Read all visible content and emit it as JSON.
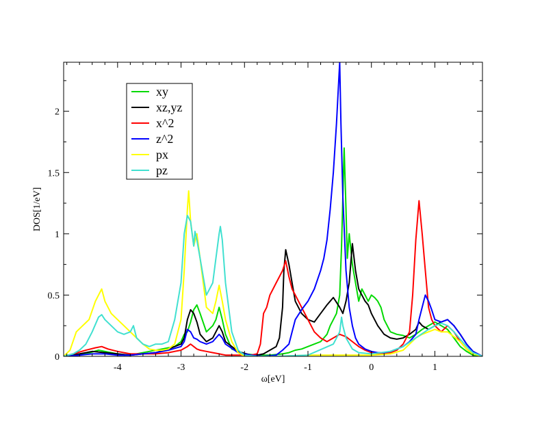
{
  "chart_data": {
    "type": "line",
    "title": "",
    "xlabel": "ω[eV]",
    "ylabel": "DOS[1/eV]",
    "xlim": [
      -4.85,
      1.75
    ],
    "ylim": [
      0,
      2.4
    ],
    "xticks": [
      -4,
      -3,
      -2,
      -1,
      0,
      1
    ],
    "yticks": [
      0,
      0.5,
      1,
      1.5,
      2
    ],
    "xtick_labels": [
      "-4",
      "-3",
      "-2",
      "-1",
      "0",
      "1"
    ],
    "ytick_labels": [
      "0",
      "0.5",
      "1",
      "1.5",
      "2"
    ],
    "grid": false,
    "legend_position": "top-left",
    "series": [
      {
        "name": "xy",
        "color": "#00d900",
        "x": [
          -4.85,
          -4.7,
          -4.5,
          -4.3,
          -4.1,
          -3.9,
          -3.7,
          -3.5,
          -3.3,
          -3.1,
          -3.0,
          -2.95,
          -2.9,
          -2.85,
          -2.8,
          -2.75,
          -2.7,
          -2.6,
          -2.5,
          -2.45,
          -2.4,
          -2.35,
          -2.3,
          -2.2,
          -2.0,
          -1.8,
          -1.6,
          -1.4,
          -1.3,
          -1.2,
          -1.1,
          -1.0,
          -0.9,
          -0.8,
          -0.75,
          -0.7,
          -0.65,
          -0.6,
          -0.55,
          -0.5,
          -0.47,
          -0.45,
          -0.43,
          -0.4,
          -0.38,
          -0.35,
          -0.3,
          -0.25,
          -0.2,
          -0.15,
          -0.1,
          -0.05,
          0.0,
          0.05,
          0.1,
          0.15,
          0.2,
          0.3,
          0.4,
          0.5,
          0.6,
          0.7,
          0.8,
          0.9,
          1.0,
          1.1,
          1.2,
          1.3,
          1.4,
          1.5,
          1.6,
          1.75
        ],
        "y": [
          0,
          0.01,
          0.02,
          0.05,
          0.03,
          0.01,
          0.02,
          0.04,
          0.06,
          0.08,
          0.12,
          0.18,
          0.2,
          0.28,
          0.38,
          0.42,
          0.35,
          0.2,
          0.25,
          0.3,
          0.4,
          0.3,
          0.18,
          0.06,
          0.02,
          0.01,
          0.01,
          0.02,
          0.03,
          0.05,
          0.06,
          0.08,
          0.1,
          0.12,
          0.15,
          0.18,
          0.25,
          0.3,
          0.35,
          0.5,
          0.9,
          1.3,
          1.7,
          1.2,
          0.8,
          1.0,
          0.75,
          0.6,
          0.45,
          0.55,
          0.5,
          0.45,
          0.5,
          0.48,
          0.45,
          0.4,
          0.3,
          0.2,
          0.18,
          0.17,
          0.15,
          0.18,
          0.22,
          0.25,
          0.28,
          0.25,
          0.22,
          0.15,
          0.08,
          0.04,
          0.01,
          0
        ],
        "data_names": []
      },
      {
        "name": "xz,yz",
        "color": "#000000",
        "x": [
          -4.85,
          -4.6,
          -4.4,
          -4.2,
          -4.0,
          -3.8,
          -3.6,
          -3.4,
          -3.2,
          -3.0,
          -2.95,
          -2.9,
          -2.85,
          -2.8,
          -2.75,
          -2.7,
          -2.6,
          -2.5,
          -2.45,
          -2.4,
          -2.35,
          -2.3,
          -2.1,
          -1.9,
          -1.8,
          -1.7,
          -1.6,
          -1.5,
          -1.45,
          -1.4,
          -1.38,
          -1.35,
          -1.3,
          -1.25,
          -1.2,
          -1.1,
          -1.0,
          -0.9,
          -0.8,
          -0.7,
          -0.6,
          -0.5,
          -0.45,
          -0.4,
          -0.35,
          -0.3,
          -0.25,
          -0.2,
          -0.15,
          -0.1,
          -0.05,
          0.0,
          0.1,
          0.2,
          0.3,
          0.4,
          0.5,
          0.6,
          0.7,
          0.75,
          0.8,
          0.9,
          1.0,
          1.1,
          1.2,
          1.3,
          1.4,
          1.5,
          1.6,
          1.75
        ],
        "y": [
          0,
          0.02,
          0.04,
          0.03,
          0.02,
          0.01,
          0.02,
          0.03,
          0.06,
          0.1,
          0.15,
          0.3,
          0.38,
          0.35,
          0.28,
          0.18,
          0.12,
          0.15,
          0.2,
          0.25,
          0.2,
          0.12,
          0.04,
          0.01,
          0.01,
          0.02,
          0.05,
          0.08,
          0.15,
          0.4,
          0.7,
          0.87,
          0.75,
          0.6,
          0.45,
          0.35,
          0.3,
          0.28,
          0.35,
          0.42,
          0.48,
          0.4,
          0.35,
          0.45,
          0.6,
          0.92,
          0.7,
          0.55,
          0.5,
          0.45,
          0.42,
          0.35,
          0.25,
          0.18,
          0.15,
          0.14,
          0.15,
          0.18,
          0.22,
          0.28,
          0.25,
          0.22,
          0.25,
          0.28,
          0.3,
          0.25,
          0.18,
          0.1,
          0.04,
          0
        ],
        "data_names": []
      },
      {
        "name": "x^2",
        "color": "#ff0000",
        "x": [
          -4.85,
          -4.7,
          -4.5,
          -4.35,
          -4.25,
          -4.15,
          -4.0,
          -3.8,
          -3.6,
          -3.4,
          -3.2,
          -3.0,
          -2.9,
          -2.85,
          -2.8,
          -2.75,
          -2.7,
          -2.6,
          -2.5,
          -2.4,
          -2.3,
          -2.1,
          -1.9,
          -1.8,
          -1.75,
          -1.7,
          -1.65,
          -1.6,
          -1.55,
          -1.5,
          -1.45,
          -1.4,
          -1.35,
          -1.3,
          -1.25,
          -1.2,
          -1.1,
          -1.0,
          -0.9,
          -0.8,
          -0.7,
          -0.6,
          -0.5,
          -0.4,
          -0.3,
          -0.2,
          -0.1,
          0.0,
          0.1,
          0.2,
          0.3,
          0.4,
          0.5,
          0.6,
          0.65,
          0.7,
          0.75,
          0.8,
          0.85,
          0.9,
          0.95,
          1.0,
          1.1,
          1.2,
          1.3,
          1.4,
          1.5,
          1.6,
          1.75
        ],
        "y": [
          0,
          0.02,
          0.05,
          0.07,
          0.08,
          0.06,
          0.04,
          0.02,
          0.02,
          0.02,
          0.03,
          0.05,
          0.08,
          0.1,
          0.08,
          0.06,
          0.05,
          0.04,
          0.03,
          0.02,
          0.01,
          0.01,
          0.01,
          0.02,
          0.1,
          0.35,
          0.4,
          0.5,
          0.55,
          0.6,
          0.65,
          0.7,
          0.78,
          0.65,
          0.55,
          0.5,
          0.4,
          0.3,
          0.2,
          0.15,
          0.12,
          0.15,
          0.18,
          0.16,
          0.12,
          0.08,
          0.05,
          0.03,
          0.02,
          0.02,
          0.03,
          0.05,
          0.1,
          0.2,
          0.5,
          0.95,
          1.27,
          1.0,
          0.7,
          0.4,
          0.3,
          0.25,
          0.2,
          0.25,
          0.2,
          0.12,
          0.06,
          0.02,
          0
        ],
        "data_names": []
      },
      {
        "name": "z^2",
        "color": "#0000ff",
        "x": [
          -4.85,
          -4.6,
          -4.4,
          -4.2,
          -4.0,
          -3.8,
          -3.6,
          -3.4,
          -3.2,
          -3.0,
          -2.95,
          -2.9,
          -2.85,
          -2.8,
          -2.75,
          -2.7,
          -2.6,
          -2.5,
          -2.45,
          -2.4,
          -2.35,
          -2.3,
          -2.1,
          -1.9,
          -1.7,
          -1.5,
          -1.4,
          -1.3,
          -1.25,
          -1.2,
          -1.1,
          -1.0,
          -0.9,
          -0.8,
          -0.75,
          -0.7,
          -0.65,
          -0.6,
          -0.55,
          -0.52,
          -0.5,
          -0.48,
          -0.45,
          -0.4,
          -0.35,
          -0.3,
          -0.25,
          -0.2,
          -0.15,
          -0.1,
          0.0,
          0.1,
          0.2,
          0.3,
          0.4,
          0.5,
          0.6,
          0.7,
          0.75,
          0.8,
          0.85,
          0.9,
          0.95,
          1.0,
          1.1,
          1.2,
          1.3,
          1.4,
          1.5,
          1.6,
          1.75
        ],
        "y": [
          0,
          0.01,
          0.02,
          0.02,
          0.01,
          0.01,
          0.02,
          0.03,
          0.05,
          0.08,
          0.12,
          0.22,
          0.2,
          0.15,
          0.14,
          0.12,
          0.1,
          0.12,
          0.15,
          0.18,
          0.15,
          0.1,
          0.03,
          0.01,
          0.0,
          0.01,
          0.05,
          0.1,
          0.2,
          0.3,
          0.38,
          0.45,
          0.55,
          0.7,
          0.8,
          0.95,
          1.2,
          1.5,
          1.9,
          2.2,
          2.4,
          1.9,
          1.3,
          0.7,
          0.4,
          0.25,
          0.15,
          0.1,
          0.08,
          0.06,
          0.04,
          0.03,
          0.03,
          0.04,
          0.06,
          0.08,
          0.12,
          0.18,
          0.3,
          0.4,
          0.5,
          0.45,
          0.38,
          0.3,
          0.28,
          0.3,
          0.25,
          0.18,
          0.1,
          0.04,
          0
        ],
        "data_names": []
      },
      {
        "name": "px",
        "color": "#ffff00",
        "x": [
          -4.85,
          -4.75,
          -4.65,
          -4.55,
          -4.45,
          -4.35,
          -4.3,
          -4.25,
          -4.2,
          -4.1,
          -4.0,
          -3.9,
          -3.8,
          -3.7,
          -3.6,
          -3.5,
          -3.4,
          -3.3,
          -3.2,
          -3.1,
          -3.0,
          -2.95,
          -2.9,
          -2.88,
          -2.85,
          -2.8,
          -2.75,
          -2.7,
          -2.6,
          -2.5,
          -2.45,
          -2.4,
          -2.35,
          -2.3,
          -2.2,
          -2.1,
          -2.0,
          -1.8,
          -1.5,
          -1.0,
          -0.5,
          0.0,
          0.3,
          0.5,
          0.6,
          0.7,
          0.8,
          0.9,
          1.0,
          1.1,
          1.2,
          1.3,
          1.4,
          1.5,
          1.6,
          1.75
        ],
        "y": [
          0,
          0.05,
          0.2,
          0.25,
          0.3,
          0.45,
          0.5,
          0.55,
          0.45,
          0.35,
          0.3,
          0.25,
          0.2,
          0.15,
          0.1,
          0.06,
          0.05,
          0.05,
          0.06,
          0.1,
          0.3,
          0.7,
          1.2,
          1.35,
          1.1,
          0.9,
          1.0,
          0.8,
          0.4,
          0.35,
          0.45,
          0.58,
          0.45,
          0.3,
          0.12,
          0.03,
          0.0,
          0.0,
          0.0,
          0.01,
          0.01,
          0.01,
          0.02,
          0.05,
          0.1,
          0.15,
          0.18,
          0.2,
          0.22,
          0.2,
          0.2,
          0.16,
          0.12,
          0.06,
          0.02,
          0
        ],
        "data_names": []
      },
      {
        "name": "pz",
        "color": "#40e0d0",
        "x": [
          -4.85,
          -4.7,
          -4.6,
          -4.5,
          -4.4,
          -4.3,
          -4.25,
          -4.2,
          -4.1,
          -4.0,
          -3.9,
          -3.8,
          -3.75,
          -3.7,
          -3.6,
          -3.5,
          -3.4,
          -3.3,
          -3.2,
          -3.1,
          -3.0,
          -2.95,
          -2.9,
          -2.85,
          -2.8,
          -2.78,
          -2.75,
          -2.7,
          -2.6,
          -2.5,
          -2.45,
          -2.4,
          -2.38,
          -2.35,
          -2.3,
          -2.2,
          -2.1,
          -2.0,
          -1.8,
          -1.5,
          -1.0,
          -0.6,
          -0.5,
          -0.47,
          -0.45,
          -0.4,
          -0.3,
          -0.2,
          0.0,
          0.3,
          0.5,
          0.7,
          0.9,
          1.0,
          1.1,
          1.2,
          1.3,
          1.4,
          1.5,
          1.6,
          1.75
        ],
        "y": [
          0,
          0.02,
          0.05,
          0.1,
          0.2,
          0.32,
          0.34,
          0.3,
          0.25,
          0.2,
          0.18,
          0.2,
          0.25,
          0.15,
          0.1,
          0.08,
          0.1,
          0.1,
          0.12,
          0.3,
          0.6,
          1.0,
          1.15,
          1.1,
          0.9,
          1.02,
          0.95,
          0.8,
          0.5,
          0.6,
          0.8,
          1.0,
          1.06,
          0.95,
          0.6,
          0.2,
          0.05,
          0.01,
          0.0,
          0.0,
          0.01,
          0.1,
          0.2,
          0.32,
          0.25,
          0.15,
          0.06,
          0.03,
          0.02,
          0.04,
          0.08,
          0.15,
          0.22,
          0.25,
          0.27,
          0.25,
          0.2,
          0.14,
          0.08,
          0.03,
          0
        ]
      }
    ]
  }
}
